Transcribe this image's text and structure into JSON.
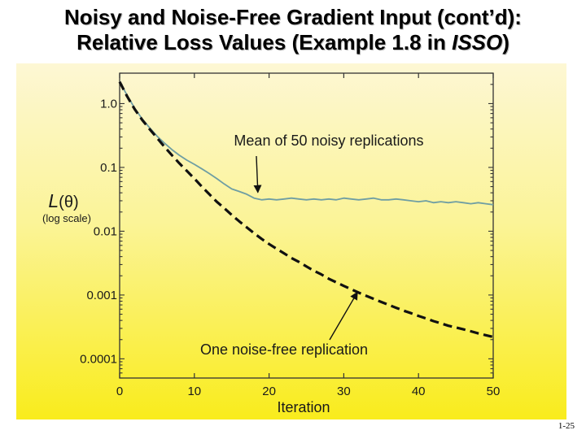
{
  "slide": {
    "title_line1": "Noisy and Noise-Free Gradient Input (cont’d):",
    "title_line2_prefix": "Relative Loss Values (Example 1.8 in ",
    "title_line2_italic": "ISSO",
    "title_line2_suffix": ")",
    "slide_number": "1-25"
  },
  "chart_data": {
    "type": "line",
    "xlabel": "Iteration",
    "ylabel": "L(θ)",
    "ylabel_sub": "(log scale)",
    "x_scale": "linear",
    "y_scale": "log",
    "xlim": [
      0,
      50
    ],
    "ylim": [
      5e-05,
      3
    ],
    "x_ticks": [
      0,
      10,
      20,
      30,
      40,
      50
    ],
    "x_tick_labels": [
      "0",
      "10",
      "20",
      "30",
      "40",
      "50"
    ],
    "y_ticks": [
      1.0,
      0.1,
      0.01,
      0.001,
      0.0001
    ],
    "y_tick_labels": [
      "1.0",
      "0.1",
      "0.01",
      "0.001",
      "0.0001"
    ],
    "grid": false,
    "legend": "none",
    "series": [
      {
        "name": "Mean of 50 noisy replications",
        "style": "solid",
        "color": "#6f9ea3",
        "x": [
          0,
          1,
          2,
          3,
          4,
          5,
          6,
          7,
          8,
          9,
          10,
          11,
          12,
          13,
          14,
          15,
          16,
          17,
          18,
          19,
          20,
          21,
          22,
          23,
          24,
          25,
          26,
          27,
          28,
          29,
          30,
          31,
          32,
          33,
          34,
          35,
          36,
          37,
          38,
          39,
          40,
          41,
          42,
          43,
          44,
          45,
          46,
          47,
          48,
          49,
          50
        ],
        "y": [
          2.2,
          1.35,
          0.85,
          0.58,
          0.42,
          0.31,
          0.24,
          0.19,
          0.155,
          0.13,
          0.112,
          0.095,
          0.08,
          0.067,
          0.055,
          0.046,
          0.042,
          0.038,
          0.033,
          0.031,
          0.032,
          0.031,
          0.032,
          0.033,
          0.032,
          0.031,
          0.032,
          0.031,
          0.032,
          0.031,
          0.033,
          0.032,
          0.031,
          0.032,
          0.033,
          0.031,
          0.031,
          0.032,
          0.031,
          0.03,
          0.029,
          0.03,
          0.028,
          0.029,
          0.028,
          0.029,
          0.028,
          0.027,
          0.028,
          0.027,
          0.026
        ]
      },
      {
        "name": "One noise-free replication",
        "style": "dashed",
        "color": "#111111",
        "x": [
          0,
          1,
          2,
          3,
          4,
          5,
          6,
          7,
          8,
          9,
          10,
          11,
          12,
          13,
          14,
          15,
          16,
          17,
          18,
          19,
          20,
          21,
          22,
          23,
          24,
          25,
          26,
          27,
          28,
          29,
          30,
          31,
          32,
          33,
          34,
          35,
          36,
          37,
          38,
          39,
          40,
          41,
          42,
          43,
          44,
          45,
          46,
          47,
          48,
          49,
          50
        ],
        "y": [
          2.2,
          1.3,
          0.82,
          0.56,
          0.4,
          0.29,
          0.21,
          0.155,
          0.116,
          0.088,
          0.067,
          0.05,
          0.038,
          0.029,
          0.023,
          0.018,
          0.0143,
          0.0115,
          0.0093,
          0.0076,
          0.0063,
          0.0053,
          0.0045,
          0.0038,
          0.0033,
          0.0028,
          0.0024,
          0.0021,
          0.0018,
          0.00158,
          0.00139,
          0.00123,
          0.00109,
          0.00097,
          0.00087,
          0.00078,
          0.0007,
          0.00063,
          0.00057,
          0.00052,
          0.00047,
          0.00043,
          0.00039,
          0.00036,
          0.00033,
          0.00031,
          0.00029,
          0.00027,
          0.00025,
          0.000235,
          0.00022
        ]
      }
    ],
    "annotations": [
      {
        "text": "Mean of 50 noisy replications",
        "arrow_to_x": 18.5,
        "arrow_to_y": 0.033
      },
      {
        "text": "One noise-free replication",
        "arrow_to_x": 31.5,
        "arrow_to_y": 0.0014
      }
    ]
  }
}
